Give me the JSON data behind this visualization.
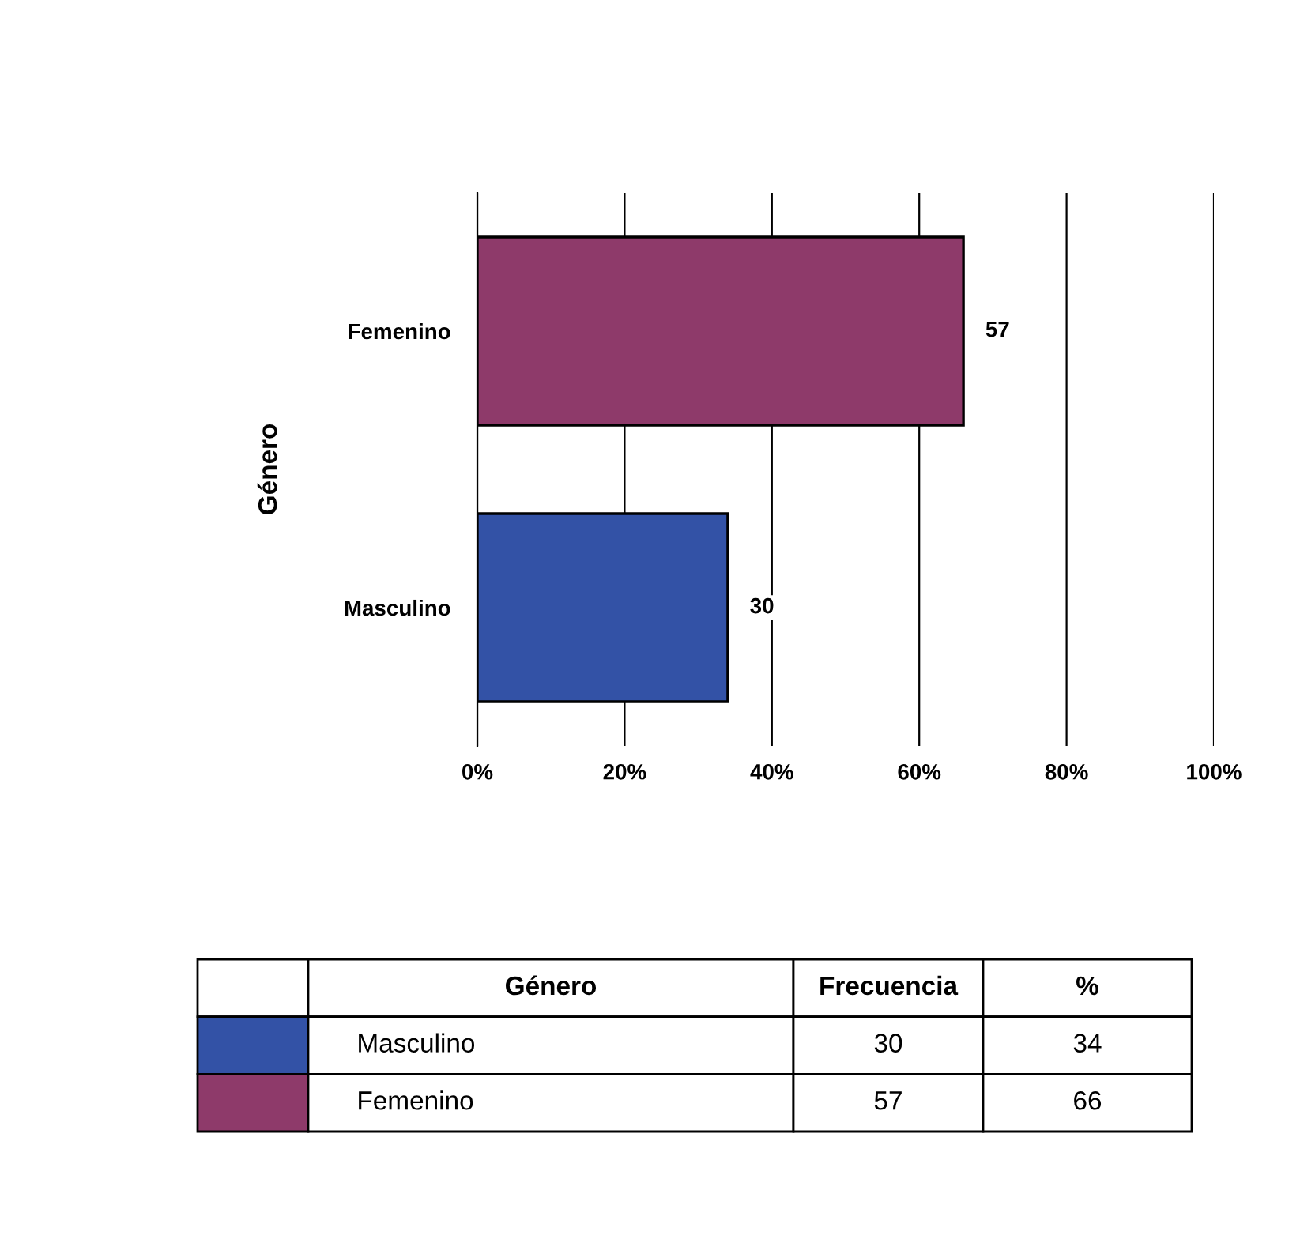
{
  "chart_data": {
    "type": "bar",
    "orientation": "horizontal",
    "ylabel": "Género",
    "categories": [
      "Femenino",
      "Masculino"
    ],
    "values": [
      66,
      34
    ],
    "colors": [
      "#8e3a6a",
      "#3352a6"
    ],
    "xlim": [
      0,
      100
    ],
    "xticks": [
      {
        "value": 0,
        "label": "0%"
      },
      {
        "value": 20,
        "label": "20%"
      },
      {
        "value": 40,
        "label": "40%"
      },
      {
        "value": 60,
        "label": "60%"
      },
      {
        "value": 80,
        "label": "80%"
      },
      {
        "value": 100,
        "label": "100%"
      }
    ],
    "grid": "x",
    "legend": false,
    "annotations": [
      {
        "text": "57",
        "x": 66,
        "y": "Femenino"
      },
      {
        "text": "30",
        "x": 34,
        "y": "Masculino"
      },
      "Género",
      "Frecuencia",
      "%",
      "Masculino",
      "30",
      "34",
      "Femenino",
      "57",
      "66"
    ]
  }
}
